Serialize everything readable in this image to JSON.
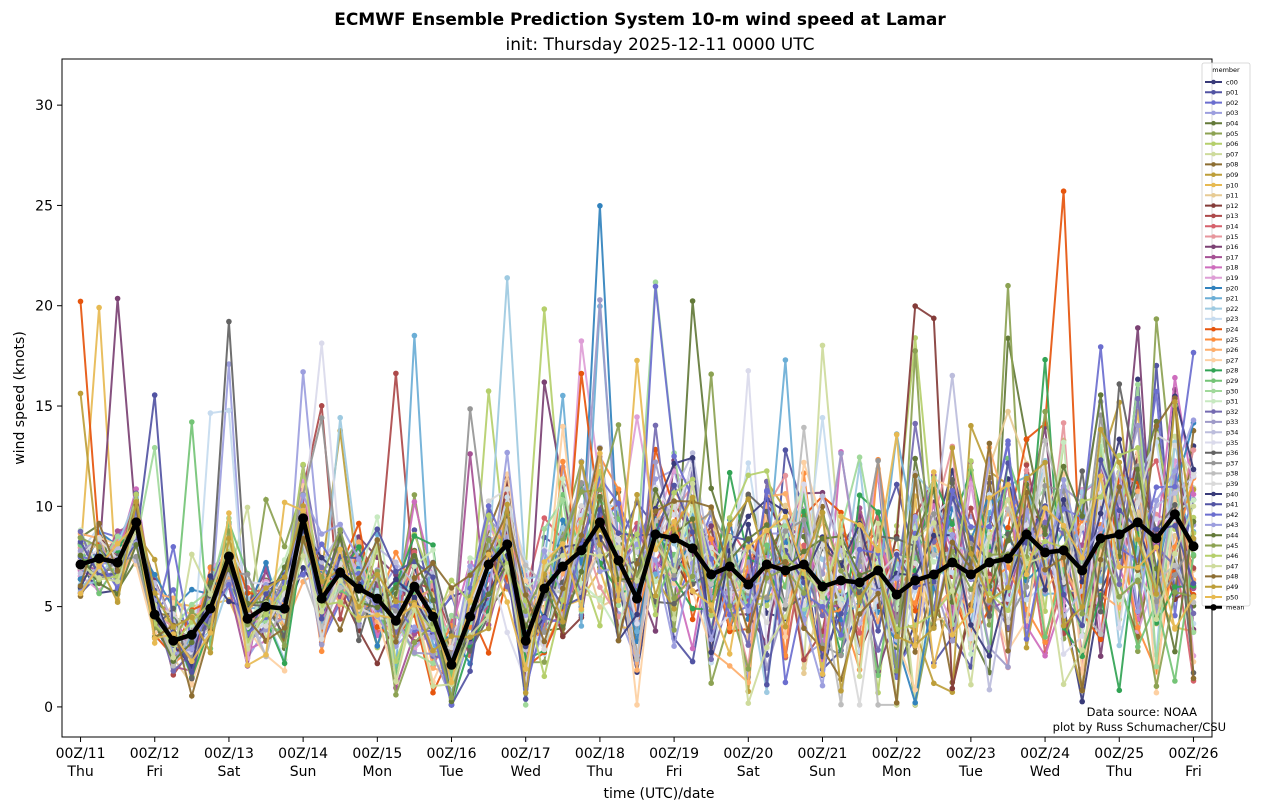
{
  "chart_data": {
    "type": "line",
    "title": "ECMWF Ensemble Prediction System 10-m wind speed at Lamar",
    "subtitle": "init: Thursday 2025-12-11 0000 UTC",
    "xlabel": "time (UTC)/date",
    "ylabel": "wind speed (knots)",
    "x_ticks": [
      {
        "label": "00Z/11",
        "day": "Thu"
      },
      {
        "label": "00Z/12",
        "day": "Fri"
      },
      {
        "label": "00Z/13",
        "day": "Sat"
      },
      {
        "label": "00Z/14",
        "day": "Sun"
      },
      {
        "label": "00Z/15",
        "day": "Mon"
      },
      {
        "label": "00Z/16",
        "day": "Tue"
      },
      {
        "label": "00Z/17",
        "day": "Wed"
      },
      {
        "label": "00Z/18",
        "day": "Thu"
      },
      {
        "label": "00Z/19",
        "day": "Fri"
      },
      {
        "label": "00Z/20",
        "day": "Sat"
      },
      {
        "label": "00Z/21",
        "day": "Sun"
      },
      {
        "label": "00Z/22",
        "day": "Mon"
      },
      {
        "label": "00Z/23",
        "day": "Tue"
      },
      {
        "label": "00Z/24",
        "day": "Wed"
      },
      {
        "label": "00Z/25",
        "day": "Thu"
      },
      {
        "label": "00Z/26",
        "day": "Fri"
      }
    ],
    "xlim_hours": [
      -6,
      366
    ],
    "ylim": [
      -1.5,
      32.3
    ],
    "y_ticks": [
      0,
      5,
      10,
      15,
      20,
      25,
      30
    ],
    "x_hours": [
      0,
      6,
      12,
      18,
      24,
      30,
      36,
      42,
      48,
      54,
      60,
      66,
      72,
      78,
      84,
      90,
      96,
      102,
      108,
      114,
      120,
      126,
      132,
      138,
      144,
      150,
      156,
      162,
      168,
      174,
      180,
      186,
      192,
      198,
      204,
      210,
      216,
      222,
      228,
      234,
      240,
      246,
      252,
      258,
      264,
      270,
      276,
      282,
      288,
      294,
      300,
      306,
      312,
      318,
      324,
      330,
      336,
      342,
      348,
      354,
      360
    ],
    "mean": [
      7.1,
      7.4,
      7.2,
      9.2,
      4.6,
      3.3,
      3.6,
      4.9,
      7.5,
      4.4,
      5.0,
      4.9,
      9.4,
      5.4,
      6.7,
      5.9,
      5.4,
      4.3,
      6.0,
      4.5,
      2.1,
      4.5,
      7.1,
      8.1,
      3.3,
      5.9,
      7.0,
      7.8,
      9.2,
      7.3,
      5.4,
      8.6,
      8.4,
      7.9,
      6.6,
      7.0,
      6.1,
      7.1,
      6.8,
      7.1,
      6.0,
      6.3,
      6.2,
      6.8,
      5.6,
      6.3,
      6.6,
      7.2,
      6.6,
      7.2,
      7.4,
      8.6,
      7.7,
      7.8,
      6.8,
      8.4,
      8.6,
      9.2,
      8.4,
      9.6,
      8.0
    ],
    "legend_title": "member",
    "members": [
      "c00",
      "p01",
      "p02",
      "p03",
      "p04",
      "p05",
      "p06",
      "p07",
      "p08",
      "p09",
      "p10",
      "p11",
      "p12",
      "p13",
      "p14",
      "p15",
      "p16",
      "p17",
      "p18",
      "p19",
      "p20",
      "p21",
      "p22",
      "p23",
      "p24",
      "p25",
      "p26",
      "p27",
      "p28",
      "p29",
      "p30",
      "p31",
      "p32",
      "p33",
      "p34",
      "p35",
      "p36",
      "p37",
      "p38",
      "p39",
      "p40",
      "p41",
      "p42",
      "p43",
      "p44",
      "p45",
      "p46",
      "p47",
      "p48",
      "p49",
      "p50"
    ],
    "mean_label": "mean",
    "colors": [
      "#393b79",
      "#5254a3",
      "#6b6ecf",
      "#9c9ede",
      "#637939",
      "#8ca252",
      "#b5cf6b",
      "#cedb9c",
      "#8c6d31",
      "#bd9e39",
      "#e7ba52",
      "#e7cb94",
      "#843c39",
      "#ad494a",
      "#d6616b",
      "#e7969c",
      "#7b4173",
      "#a55194",
      "#ce6dbd",
      "#de9ed6",
      "#3182bd",
      "#6baed6",
      "#9ecae1",
      "#c6dbef",
      "#e6550d",
      "#fd8d3c",
      "#fdae6b",
      "#fdd0a2",
      "#31a354",
      "#74c476",
      "#a1d99b",
      "#c7e9c0",
      "#756bb1",
      "#9e9ac8",
      "#bcbddc",
      "#dadaeb",
      "#636363",
      "#969696",
      "#bdbdbd",
      "#d9d9d9"
    ],
    "mean_color": "#000000"
  },
  "notes": {
    "source": "Data source: NOAA",
    "credit": "plot by Russ Schumacher/CSU"
  }
}
